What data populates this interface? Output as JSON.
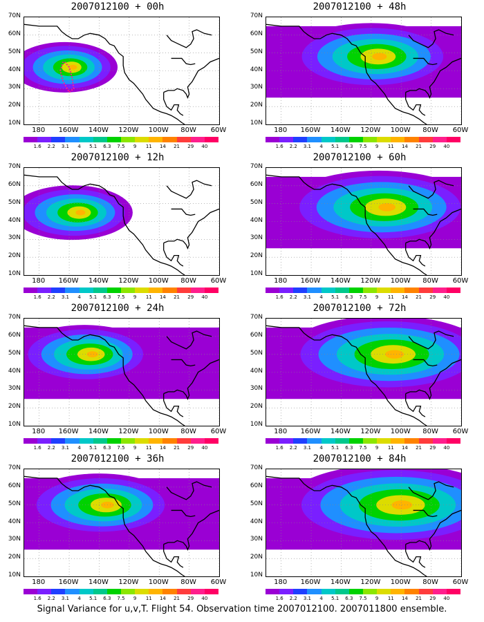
{
  "panels": [
    {
      "title": "2007012100 + 00h",
      "spread": 0.15,
      "centerLon": -163,
      "centerLat": 42
    },
    {
      "title": "2007012100 + 48h",
      "spread": 0.55,
      "centerLon": -120,
      "centerLat": 48
    },
    {
      "title": "2007012100 + 12h",
      "spread": 0.25,
      "centerLon": -158,
      "centerLat": 45
    },
    {
      "title": "2007012100 + 60h",
      "spread": 0.7,
      "centerLon": -115,
      "centerLat": 48
    },
    {
      "title": "2007012100 + 24h",
      "spread": 0.35,
      "centerLon": -150,
      "centerLat": 50
    },
    {
      "title": "2007012100 + 72h",
      "spread": 0.8,
      "centerLon": -110,
      "centerLat": 50
    },
    {
      "title": "2007012100 + 36h",
      "spread": 0.45,
      "centerLon": -140,
      "centerLat": 50
    },
    {
      "title": "2007012100 + 84h",
      "spread": 0.9,
      "centerLon": -105,
      "centerLat": 50
    }
  ],
  "lat_labels": [
    "70N",
    "60N",
    "50N",
    "40N",
    "30N",
    "20N",
    "10N"
  ],
  "lon_labels": [
    "180",
    "160W",
    "140W",
    "120W",
    "100W",
    "80W",
    "60W"
  ],
  "colorbar_labels": [
    "1.6",
    "2.2",
    "3.1",
    "4",
    "5.1",
    "6.3",
    "7.5",
    "9",
    "11",
    "14",
    "21",
    "29",
    "40"
  ],
  "colorbar_colors": [
    "#9a00d4",
    "#7a1fff",
    "#1f3fff",
    "#1f8fff",
    "#00c8c8",
    "#00c88c",
    "#00d200",
    "#8ce600",
    "#dcdc00",
    "#ffb400",
    "#ff8200",
    "#ff3c3c",
    "#ff1e8c",
    "#ff0064"
  ],
  "caption": "Signal Variance for u,v,T. Flight 54. Observation time 2007012100. 2007011800 ensemble."
}
